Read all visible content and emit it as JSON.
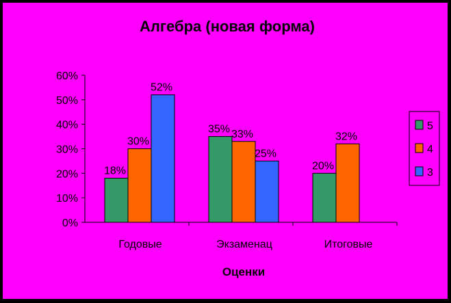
{
  "chart_data": {
    "type": "bar",
    "title": "Алгебра (новая форма)",
    "xlabel": "Оценки",
    "ylabel": "",
    "categories": [
      "Годовые",
      "Экзаменац",
      "Итоговые"
    ],
    "series": [
      {
        "name": "5",
        "values": [
          18,
          35,
          20
        ],
        "labels": [
          "18%",
          "35%",
          "20%"
        ]
      },
      {
        "name": "4",
        "values": [
          30,
          33,
          32
        ],
        "labels": [
          "30%",
          "33%",
          "32%"
        ]
      },
      {
        "name": "3",
        "values": [
          52,
          25,
          null
        ],
        "labels": [
          "52%",
          "25%",
          ""
        ]
      }
    ],
    "y_ticks": [
      "0%",
      "10%",
      "20%",
      "30%",
      "40%",
      "50%",
      "60%"
    ],
    "ylim": [
      0,
      60
    ],
    "grid": false,
    "legend_position": "right"
  },
  "colors": {
    "background": "#ff00ff",
    "plot_area": "#ff00ff",
    "series": [
      "#339966",
      "#ff6600",
      "#3366ff"
    ],
    "outline": "#000000"
  }
}
